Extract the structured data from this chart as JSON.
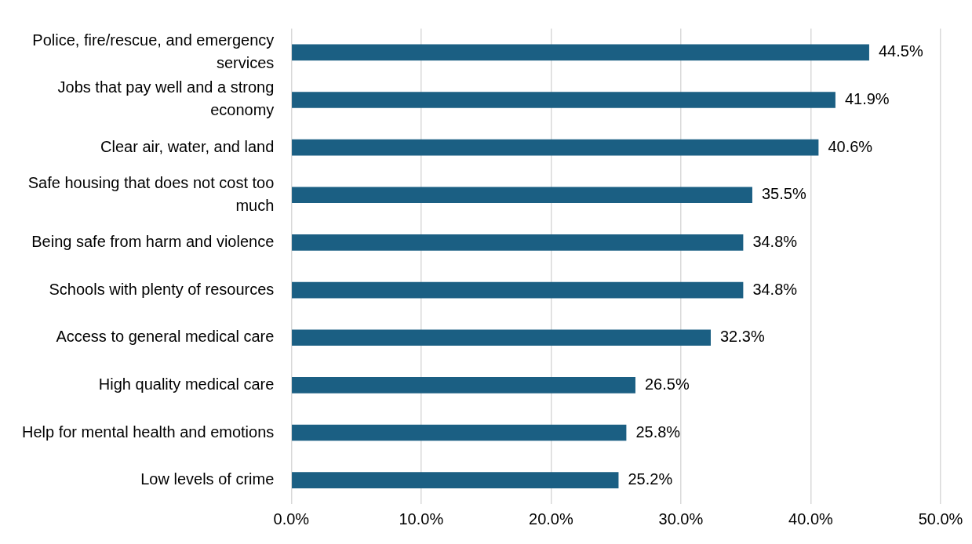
{
  "chart_data": {
    "type": "bar",
    "orientation": "horizontal",
    "categories": [
      "Police, fire/rescue, and emergency services",
      "Jobs that pay well and a strong economy",
      "Clear air, water, and land",
      "Safe housing that does not cost too much",
      "Being safe from harm and violence",
      "Schools with plenty of resources",
      "Access to general medical care",
      "High quality medical care",
      "Help for mental health and emotions",
      "Low levels of crime"
    ],
    "values": [
      44.5,
      41.9,
      40.6,
      35.5,
      34.8,
      34.8,
      32.3,
      26.5,
      25.8,
      25.2
    ],
    "value_labels": [
      "44.5%",
      "41.9%",
      "40.6%",
      "35.5%",
      "34.8%",
      "34.8%",
      "32.3%",
      "26.5%",
      "25.8%",
      "25.2%"
    ],
    "color": "#1b5f83",
    "xlim": [
      0,
      50
    ],
    "xticks": [
      {
        "value": 0,
        "label": "0.0%"
      },
      {
        "value": 10,
        "label": "10.0%"
      },
      {
        "value": 20,
        "label": "20.0%"
      },
      {
        "value": 30,
        "label": "30.0%"
      },
      {
        "value": 40,
        "label": "40.0%"
      },
      {
        "value": 50,
        "label": "50.0%"
      }
    ],
    "grid": "x",
    "legend": false
  }
}
